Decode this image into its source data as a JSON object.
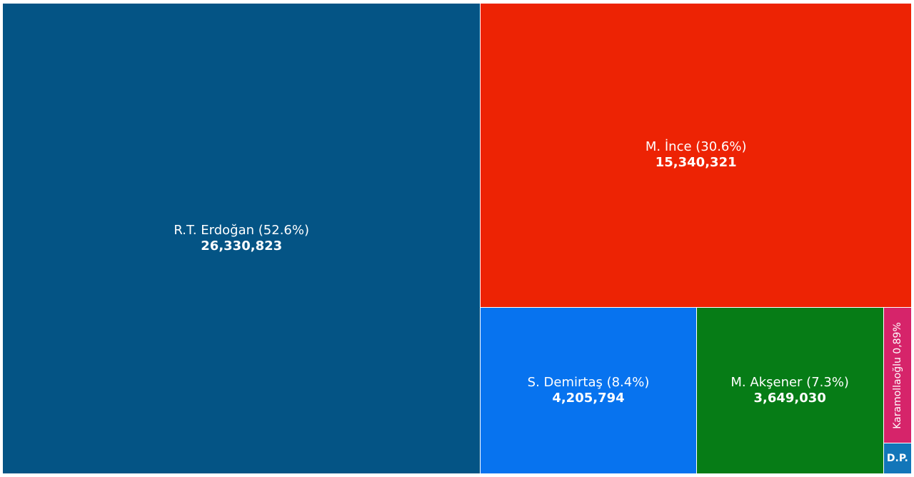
{
  "chart_data": {
    "type": "treemap",
    "title": "",
    "series": [
      {
        "name": "R.T. Erdoğan",
        "label": "R.T. Erdoğan (52.6%)",
        "value_label": "26,330,823",
        "value": 26330823,
        "percent": 52.6,
        "color": "#045485"
      },
      {
        "name": "M. İnce",
        "label": "M. İnce (30.6%)",
        "value_label": "15,340,321",
        "value": 15340321,
        "percent": 30.6,
        "color": "#ed2304"
      },
      {
        "name": "S. Demirtaş",
        "label": "S. Demirtaş (8.4%)",
        "value_label": "4,205,794",
        "value": 4205794,
        "percent": 8.4,
        "color": "#0773ef"
      },
      {
        "name": "M. Akşener",
        "label": "M. Akşener (7.3%)",
        "value_label": "3,649,030",
        "value": 3649030,
        "percent": 7.3,
        "color": "#067c16"
      },
      {
        "name": "Karamollaoğlu",
        "label": "Karamollaoğlu 0,89%",
        "value_label": "",
        "value": 446000,
        "percent": 0.89,
        "color": "#d6246a"
      },
      {
        "name": "D.P.",
        "label": "D.P.",
        "value_label": "",
        "value": 100000,
        "percent": 0.2,
        "color": "#1276b9"
      }
    ]
  }
}
